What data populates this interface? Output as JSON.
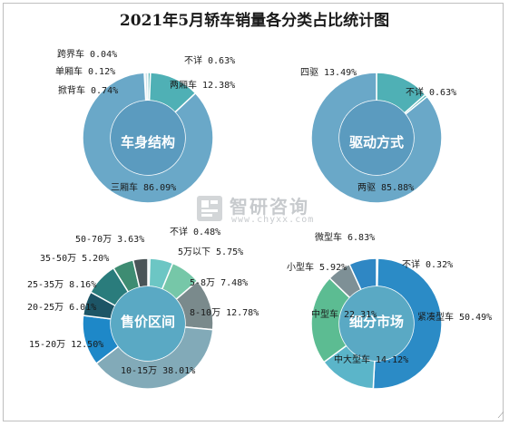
{
  "title": "2021年5月轿车销量各分类占比统计图",
  "watermark": {
    "name": "智研咨询",
    "url": "www.chyxx.com"
  },
  "chart_data": [
    {
      "type": "pie",
      "donut": true,
      "title": "车身结构",
      "color": "#5b9bbf",
      "slices": [
        {
          "label": "跨界车 0.04%",
          "value": 0.04,
          "color": "#9fcbd6"
        },
        {
          "label": "单厢车 0.12%",
          "value": 0.12,
          "color": "#b5d5de"
        },
        {
          "label": "掀背车 0.74%",
          "value": 0.74,
          "color": "#cfe3ea"
        },
        {
          "label": "不详 0.63%",
          "value": 0.63,
          "color": "#5ab7b8"
        },
        {
          "label": "两厢车 12.38%",
          "value": 12.38,
          "color": "#4fb0b5"
        },
        {
          "label": "三厢车 86.09%",
          "value": 86.09,
          "color": "#6aa8c8"
        }
      ]
    },
    {
      "type": "pie",
      "donut": true,
      "title": "驱动方式",
      "color": "#5b9bbf",
      "slices": [
        {
          "label": "四驱 13.49%",
          "value": 13.49,
          "color": "#4fb0b5"
        },
        {
          "label": "不详 0.63%",
          "value": 0.63,
          "color": "#5ab7b8"
        },
        {
          "label": "两驱 85.88%",
          "value": 85.88,
          "color": "#6aa8c8"
        }
      ]
    },
    {
      "type": "pie",
      "donut": true,
      "title": "售价区间",
      "slices": [
        {
          "label": "不详 0.48%",
          "value": 0.48,
          "color": "#8fd3d1"
        },
        {
          "label": "5万以下 5.75%",
          "value": 5.75,
          "color": "#6cc6c4"
        },
        {
          "label": "5-8万 7.48%",
          "value": 7.48,
          "color": "#76c7a8"
        },
        {
          "label": "8-10万 12.78%",
          "value": 12.78,
          "color": "#7a8a8c"
        },
        {
          "label": "10-15万 38.01%",
          "value": 38.01,
          "color": "#82aab8"
        },
        {
          "label": "15-20万 12.50%",
          "value": 12.5,
          "color": "#1e88c8"
        },
        {
          "label": "20-25万 6.01%",
          "value": 6.01,
          "color": "#1d5566"
        },
        {
          "label": "25-35万 8.16%",
          "value": 8.16,
          "color": "#2a7c7c"
        },
        {
          "label": "35-50万 5.20%",
          "value": 5.2,
          "color": "#3e8c72"
        },
        {
          "label": "50-70万 3.63%",
          "value": 3.63,
          "color": "#4a5558"
        }
      ]
    },
    {
      "type": "pie",
      "donut": true,
      "title": "细分市场",
      "slices": [
        {
          "label": "不详 0.32%",
          "value": 0.32,
          "color": "#8fc2d8"
        },
        {
          "label": "紧凑型车 50.49%",
          "value": 50.49,
          "color": "#2b8bc6"
        },
        {
          "label": "中大型车 14.12%",
          "value": 14.12,
          "color": "#5bb5c9"
        },
        {
          "label": "中型车 22.31%",
          "value": 22.31,
          "color": "#5cbc92"
        },
        {
          "label": "小型车 5.92%",
          "value": 5.92,
          "color": "#7e9096"
        },
        {
          "label": "微型车 6.83%",
          "value": 6.83,
          "color": "#2f87c4"
        }
      ]
    }
  ]
}
